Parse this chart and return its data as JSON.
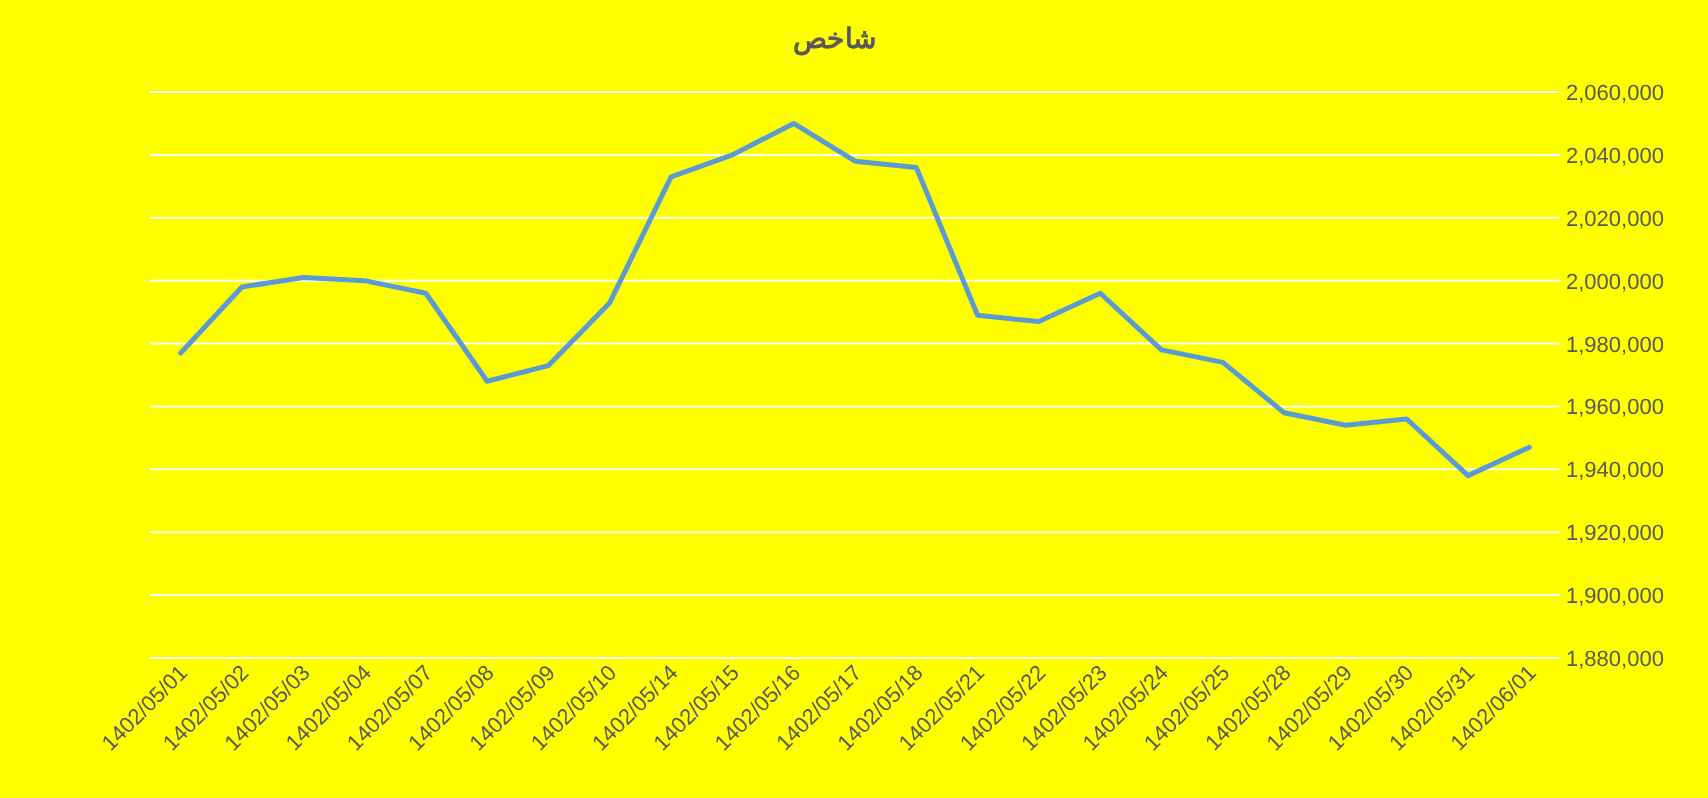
{
  "chart_data": {
    "type": "line",
    "title": "شاخص",
    "categories": [
      "1402/05/01",
      "1402/05/02",
      "1402/05/03",
      "1402/05/04",
      "1402/05/07",
      "1402/05/08",
      "1402/05/09",
      "1402/05/10",
      "1402/05/14",
      "1402/05/15",
      "1402/05/16",
      "1402/05/17",
      "1402/05/18",
      "1402/05/21",
      "1402/05/22",
      "1402/05/23",
      "1402/05/24",
      "1402/05/25",
      "1402/05/28",
      "1402/05/29",
      "1402/05/30",
      "1402/05/31",
      "1402/06/01"
    ],
    "series": [
      {
        "color": "#5b9bd5",
        "values": [
          1977000,
          1998000,
          2001000,
          2000000,
          1996000,
          1968000,
          1973000,
          1993000,
          2033000,
          2040000,
          2050000,
          2038000,
          2036000,
          1989000,
          1987000,
          1996000,
          1978000,
          1974000,
          1958000,
          1954000,
          1956000,
          1938000,
          1947000
        ]
      }
    ],
    "ylim": [
      1880000,
      2060000
    ],
    "yticks": [
      {
        "value": 1880000,
        "label": "1,880,000"
      },
      {
        "value": 1900000,
        "label": "1,900,000"
      },
      {
        "value": 1920000,
        "label": "1,920,000"
      },
      {
        "value": 1940000,
        "label": "1,940,000"
      },
      {
        "value": 1960000,
        "label": "1,960,000"
      },
      {
        "value": 1980000,
        "label": "1,980,000"
      },
      {
        "value": 2000000,
        "label": "2,000,000"
      },
      {
        "value": 2020000,
        "label": "2,020,000"
      },
      {
        "value": 2040000,
        "label": "2,040,000"
      },
      {
        "value": 2060000,
        "label": "2,060,000"
      }
    ],
    "grid": "y"
  }
}
